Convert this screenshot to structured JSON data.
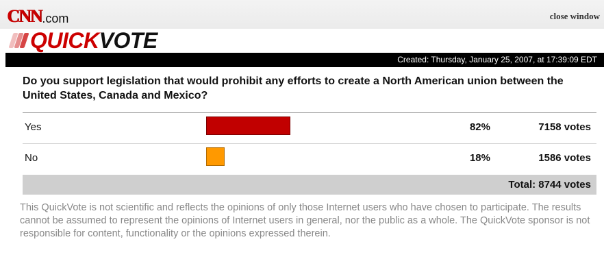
{
  "header": {
    "brand_cnn": "CNN",
    "brand_com": ".com",
    "close_window": "close window",
    "logo_quick": "QUICK",
    "logo_vote": "VOTE"
  },
  "poll": {
    "created": "Created: Thursday, January 25, 2007, at 17:39:09 EDT",
    "question": "Do you support legislation that would prohibit any efforts to create a North American union between the United States, Canada and Mexico?",
    "options": [
      {
        "label": "Yes",
        "percent": "82%",
        "share": 0.82,
        "votes": "7158 votes",
        "color": "#c10000"
      },
      {
        "label": "No",
        "percent": "18%",
        "share": 0.18,
        "votes": "1586 votes",
        "color": "#ff9900"
      }
    ],
    "total": "Total: 8744 votes"
  },
  "disclaimer": "This QuickVote is not scientific and reflects the opinions of only those Internet users who have chosen to participate. The results cannot be assumed to represent the opinions of Internet users in general, nor the public as a whole. The QuickVote sponsor is not responsible for content, functionality or the opinions expressed therein.",
  "colors": {
    "brand_red": "#cc0000",
    "created_bar": "#000000",
    "total_bar": "#cfcfcf"
  }
}
